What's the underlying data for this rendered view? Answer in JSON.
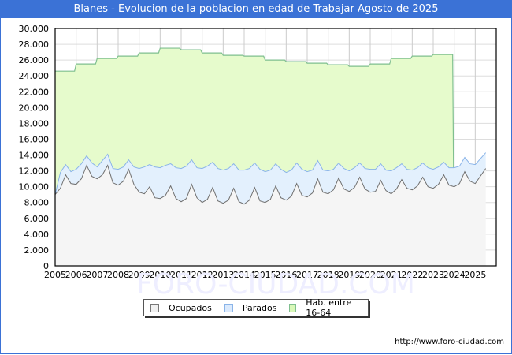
{
  "title": "Blanes - Evolucion de la poblacion en edad de Trabajar Agosto de 2025",
  "footer_url": "http://www.foro-ciudad.com",
  "watermark": "FORO-CIUDAD.COM",
  "legend": {
    "ocupados": "Ocupados",
    "parados": "Parados",
    "hab": "Hab. entre 16-64"
  },
  "colors": {
    "title_bg": "#3b72d6",
    "ocupados_fill": "#f5f5f5",
    "ocupados_line": "#707070",
    "parados_fill": "#e3f0fd",
    "parados_line": "#8ab4e8",
    "hab_fill": "#e6fbcc",
    "hab_line": "#7fbf8f"
  },
  "chart_data": {
    "type": "area",
    "title": "Blanes - Evolucion de la poblacion en edad de Trabajar Agosto de 2025",
    "xlabel": "",
    "ylabel": "",
    "ylim": [
      0,
      30000
    ],
    "yticks": [
      "0",
      "2.000",
      "4.000",
      "6.000",
      "8.000",
      "10.000",
      "12.000",
      "14.000",
      "16.000",
      "18.000",
      "20.000",
      "22.000",
      "24.000",
      "26.000",
      "28.000",
      "30.000"
    ],
    "xticks": [
      "2005",
      "2006",
      "2007",
      "2008",
      "2009",
      "2010",
      "2011",
      "2012",
      "2013",
      "2014",
      "2015",
      "2016",
      "2017",
      "2018",
      "2019",
      "2020",
      "2021",
      "2022",
      "2023",
      "2024",
      "2025"
    ],
    "grid": true,
    "legend_position": "bottom",
    "series": [
      {
        "name": "Hab. entre 16-64",
        "x": [
          2005,
          2006,
          2007,
          2008,
          2009,
          2010,
          2011,
          2012,
          2013,
          2014,
          2015,
          2016,
          2017,
          2018,
          2019,
          2020,
          2021,
          2022,
          2023
        ],
        "values": [
          24600,
          25500,
          26200,
          26500,
          26900,
          27500,
          27300,
          26900,
          26600,
          26500,
          26000,
          25800,
          25600,
          25400,
          25200,
          25500,
          26200,
          26500,
          26700
        ]
      },
      {
        "name": "Ocupados",
        "x": [
          2005.0,
          2005.25,
          2005.5,
          2005.75,
          2006.0,
          2006.25,
          2006.5,
          2006.75,
          2007.0,
          2007.25,
          2007.5,
          2007.75,
          2008.0,
          2008.25,
          2008.5,
          2008.75,
          2009.0,
          2009.25,
          2009.5,
          2009.75,
          2010.0,
          2010.25,
          2010.5,
          2010.75,
          2011.0,
          2011.25,
          2011.5,
          2011.75,
          2012.0,
          2012.25,
          2012.5,
          2012.75,
          2013.0,
          2013.25,
          2013.5,
          2013.75,
          2014.0,
          2014.25,
          2014.5,
          2014.75,
          2015.0,
          2015.25,
          2015.5,
          2015.75,
          2016.0,
          2016.25,
          2016.5,
          2016.75,
          2017.0,
          2017.25,
          2017.5,
          2017.75,
          2018.0,
          2018.25,
          2018.5,
          2018.75,
          2019.0,
          2019.25,
          2019.5,
          2019.75,
          2020.0,
          2020.25,
          2020.5,
          2020.75,
          2021.0,
          2021.25,
          2021.5,
          2021.75,
          2022.0,
          2022.25,
          2022.5,
          2022.75,
          2023.0,
          2023.25,
          2023.5,
          2023.75,
          2024.0,
          2024.25,
          2024.5,
          2024.75,
          2025.0,
          2025.5
        ],
        "values": [
          9000,
          9800,
          11500,
          10400,
          10300,
          11000,
          12700,
          11300,
          11000,
          11500,
          12700,
          10500,
          10200,
          10700,
          12200,
          10300,
          9300,
          9100,
          10000,
          8600,
          8500,
          8900,
          10100,
          8500,
          8100,
          8500,
          10300,
          8600,
          8000,
          8400,
          9900,
          8200,
          7900,
          8300,
          9800,
          8100,
          7800,
          8300,
          9900,
          8200,
          8000,
          8400,
          10100,
          8600,
          8300,
          8800,
          10400,
          8900,
          8700,
          9200,
          11000,
          9300,
          9100,
          9600,
          11100,
          9700,
          9400,
          9900,
          11200,
          9700,
          9300,
          9400,
          10800,
          9500,
          9100,
          9700,
          10900,
          9800,
          9600,
          10100,
          11200,
          10000,
          9800,
          10300,
          11500,
          10200,
          10000,
          10400,
          11900,
          10700,
          10400,
          12300
        ]
      },
      {
        "name": "Parados",
        "x": [
          2005.0,
          2005.25,
          2005.5,
          2005.75,
          2006.0,
          2006.25,
          2006.5,
          2006.75,
          2007.0,
          2007.25,
          2007.5,
          2007.75,
          2008.0,
          2008.25,
          2008.5,
          2008.75,
          2009.0,
          2009.25,
          2009.5,
          2009.75,
          2010.0,
          2010.25,
          2010.5,
          2010.75,
          2011.0,
          2011.25,
          2011.5,
          2011.75,
          2012.0,
          2012.25,
          2012.5,
          2012.75,
          2013.0,
          2013.25,
          2013.5,
          2013.75,
          2014.0,
          2014.25,
          2014.5,
          2014.75,
          2015.0,
          2015.25,
          2015.5,
          2015.75,
          2016.0,
          2016.25,
          2016.5,
          2016.75,
          2017.0,
          2017.25,
          2017.5,
          2017.75,
          2018.0,
          2018.25,
          2018.5,
          2018.75,
          2019.0,
          2019.25,
          2019.5,
          2019.75,
          2020.0,
          2020.25,
          2020.5,
          2020.75,
          2021.0,
          2021.25,
          2021.5,
          2021.75,
          2022.0,
          2022.25,
          2022.5,
          2022.75,
          2023.0,
          2023.25,
          2023.5,
          2023.75,
          2024.0,
          2024.25,
          2024.5,
          2024.75,
          2025.0,
          2025.5
        ],
        "values": [
          0,
          2000,
          1300,
          1500,
          1900,
          1900,
          1200,
          1700,
          1500,
          1800,
          1400,
          1800,
          2000,
          1800,
          1200,
          2200,
          3000,
          3400,
          2800,
          3900,
          3900,
          3800,
          2800,
          3900,
          4200,
          4100,
          3100,
          3800,
          4300,
          4200,
          3200,
          4100,
          4200,
          4000,
          3100,
          4000,
          4300,
          4000,
          3100,
          4000,
          3900,
          3700,
          2800,
          3600,
          3500,
          3300,
          2600,
          3300,
          3200,
          2900,
          2300,
          2800,
          2900,
          2600,
          1900,
          2600,
          2600,
          2500,
          1800,
          2600,
          2900,
          2800,
          2100,
          2600,
          2900,
          2700,
          2000,
          2400,
          2500,
          2300,
          1800,
          2400,
          2400,
          2200,
          1600,
          2200,
          2400,
          2200,
          1800,
          2200,
          2400,
          2000
        ]
      }
    ]
  }
}
